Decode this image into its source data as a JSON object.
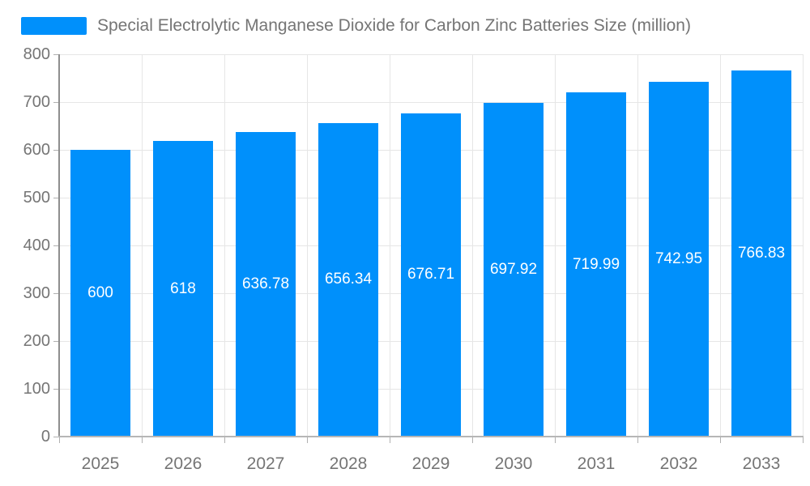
{
  "colors": {
    "bar": "#0090FB",
    "grid": "#E6E6E6",
    "y_axis_line": "#8E8E8E",
    "x_axis_line": "#B6B6B6",
    "tick": "#B0B0B0",
    "text": "#757575",
    "value_label": "#FFFFFF"
  },
  "legend": {
    "label": "Special Electrolytic Manganese Dioxide for Carbon Zinc Batteries Size (million)"
  },
  "chart_data": {
    "type": "bar",
    "title": "Special Electrolytic Manganese Dioxide for Carbon Zinc Batteries Size (million)",
    "categories": [
      "2025",
      "2026",
      "2027",
      "2028",
      "2029",
      "2030",
      "2031",
      "2032",
      "2033"
    ],
    "values": [
      600,
      618,
      636.78,
      656.34,
      676.71,
      697.92,
      719.99,
      742.95,
      766.83
    ],
    "value_labels": [
      "600",
      "618",
      "636.78",
      "656.34",
      "676.71",
      "697.92",
      "719.99",
      "742.95",
      "766.83"
    ],
    "xlabel": "",
    "ylabel": "",
    "ylim": [
      0,
      800
    ],
    "yticks": [
      0,
      100,
      200,
      300,
      400,
      500,
      600,
      700,
      800
    ],
    "grid": true,
    "legend_position": "top-left",
    "value_label_position": "center-of-bar"
  }
}
